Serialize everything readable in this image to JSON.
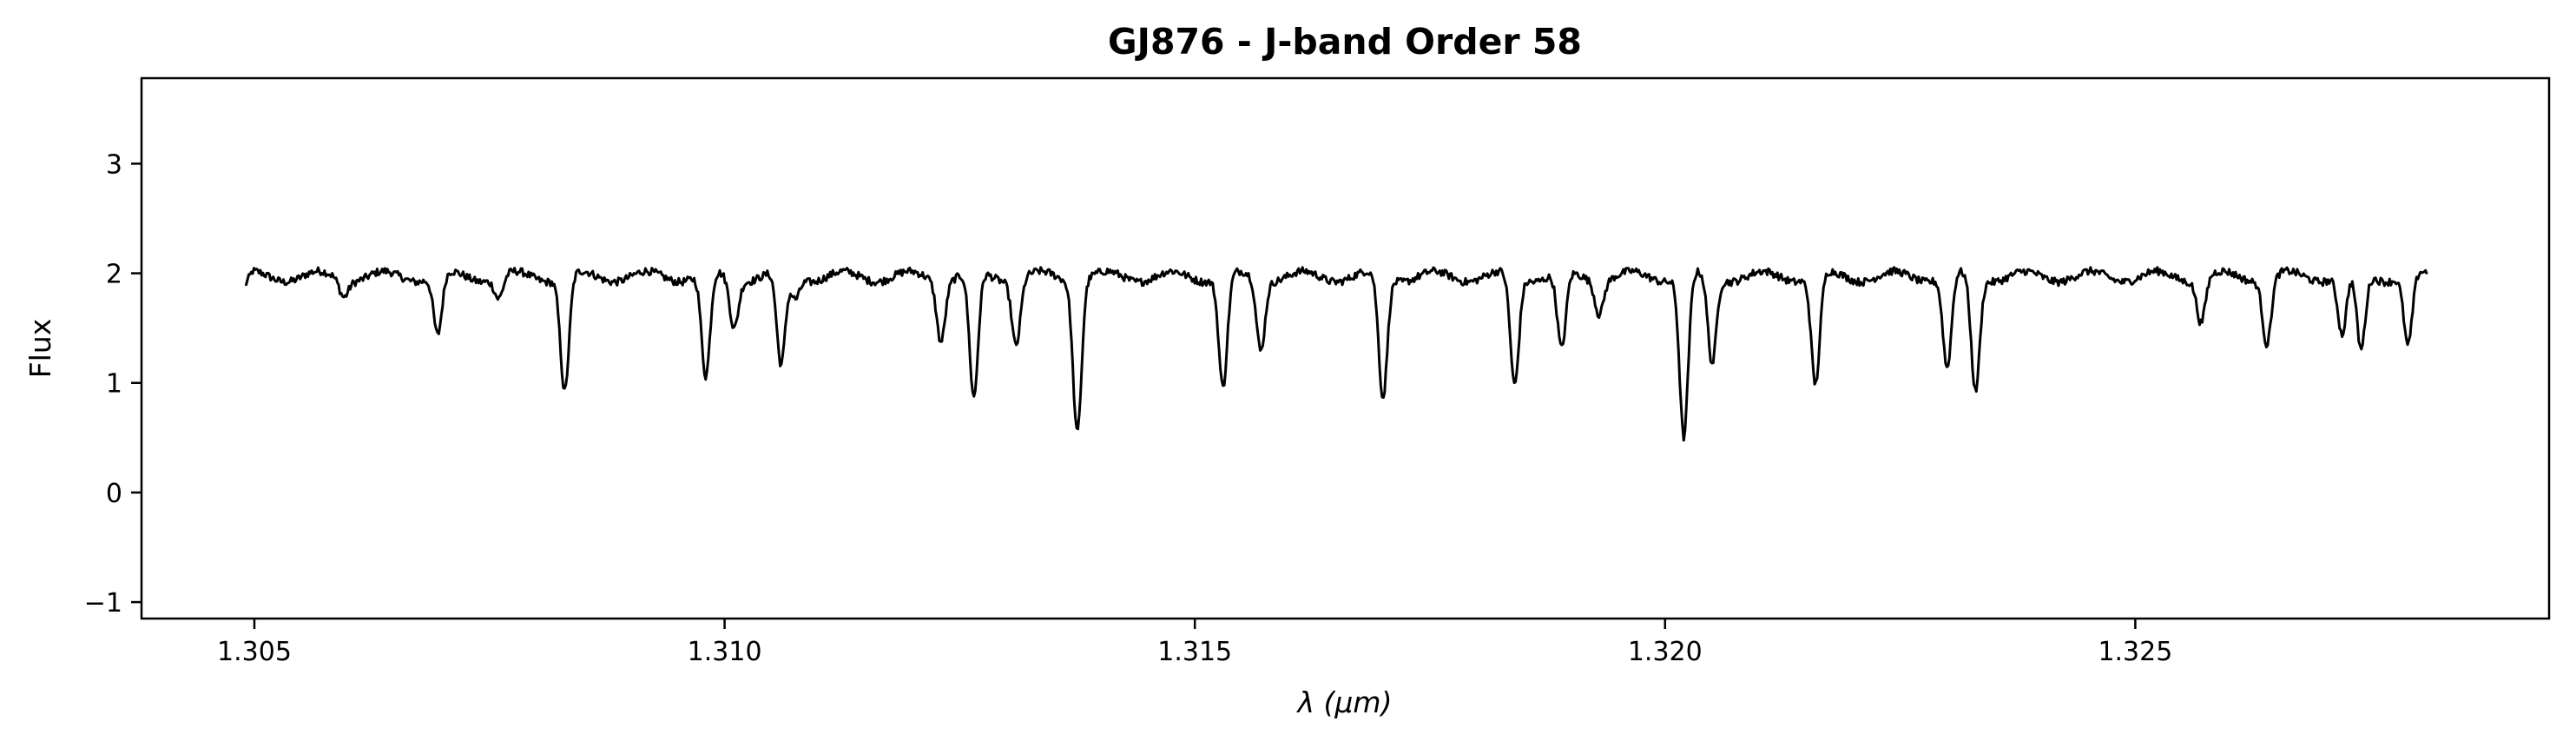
{
  "chart_data": {
    "type": "line",
    "title": "GJ876 - J-band Order 58",
    "xlabel": "λ (μm)",
    "ylabel": "Flux",
    "xlim": [
      1.3038,
      1.3294
    ],
    "ylim": [
      -1.15,
      3.78
    ],
    "xticks": [
      1.305,
      1.31,
      1.315,
      1.32,
      1.325
    ],
    "xtick_labels": [
      "1.305",
      "1.310",
      "1.315",
      "1.320",
      "1.325"
    ],
    "yticks": [
      -1,
      0,
      1,
      2,
      3
    ],
    "ytick_labels": [
      "−1",
      "0",
      "1",
      "2",
      "3"
    ],
    "grid": false,
    "legend": "none",
    "line_color": "#000000",
    "series": [
      {
        "x_range": [
          1.3049,
          1.3281
        ],
        "continuum": 1.97,
        "absorption_lines": [
          {
            "x": 1.30595,
            "depth": 0.15
          },
          {
            "x": 1.30695,
            "depth": 0.55
          },
          {
            "x": 1.3076,
            "depth": 0.2
          },
          {
            "x": 1.3083,
            "depth": 1.05
          },
          {
            "x": 1.3098,
            "depth": 0.95
          },
          {
            "x": 1.3101,
            "depth": 0.45
          },
          {
            "x": 1.3106,
            "depth": 0.85
          },
          {
            "x": 1.31075,
            "depth": 0.2
          },
          {
            "x": 1.3123,
            "depth": 0.55
          },
          {
            "x": 1.31265,
            "depth": 1.15
          },
          {
            "x": 1.3131,
            "depth": 0.6
          },
          {
            "x": 1.31375,
            "depth": 1.38
          },
          {
            "x": 1.3153,
            "depth": 1.02
          },
          {
            "x": 1.3157,
            "depth": 0.65
          },
          {
            "x": 1.317,
            "depth": 1.12
          },
          {
            "x": 1.3184,
            "depth": 1.0
          },
          {
            "x": 1.3189,
            "depth": 0.7
          },
          {
            "x": 1.3193,
            "depth": 0.3
          },
          {
            "x": 1.3202,
            "depth": 1.48
          },
          {
            "x": 1.3205,
            "depth": 0.8
          },
          {
            "x": 1.3216,
            "depth": 1.0
          },
          {
            "x": 1.323,
            "depth": 0.85
          },
          {
            "x": 1.3233,
            "depth": 1.05
          },
          {
            "x": 1.3257,
            "depth": 0.4
          },
          {
            "x": 1.3264,
            "depth": 0.6
          },
          {
            "x": 1.3272,
            "depth": 0.55
          },
          {
            "x": 1.3274,
            "depth": 0.7
          },
          {
            "x": 1.3279,
            "depth": 0.65
          }
        ]
      }
    ]
  }
}
